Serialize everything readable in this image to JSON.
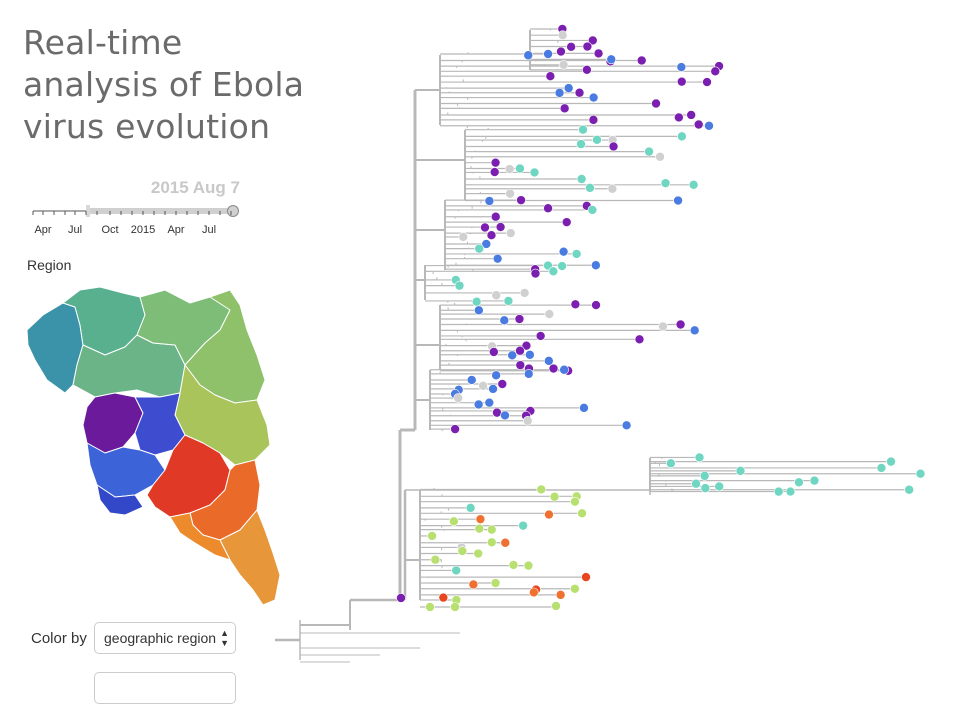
{
  "title": "Real-time analysis of Ebola virus evolution",
  "timeline": {
    "current_date": "2015 Aug 7",
    "tick_labels": [
      "Apr",
      "Jul",
      "Oct",
      "2015",
      "Apr",
      "Jul"
    ],
    "selected_fraction": 0.72
  },
  "map": {
    "label": "Region",
    "colors": {
      "guinea_coast": "#3a93a8",
      "guinea_north": "#58b08f",
      "guinea_central": "#6bb488",
      "guinea_east": "#8fc06a",
      "guinea_southeast": "#a9c45a",
      "sierra_leone_north": "#6a1a9a",
      "sierra_leone_east": "#3e4cd0",
      "sierra_leone_south": "#3d63d8",
      "liberia_north": "#e03a27",
      "liberia_central": "#ea6a2a",
      "liberia_south": "#e8963a"
    }
  },
  "color_by": {
    "label": "Color by",
    "selected": "geographic region"
  },
  "tree": {
    "branch_color": "#b8b8b8",
    "tip_colors": {
      "purple": "#7b1fb0",
      "blue": "#4a7be0",
      "teal": "#6fd6c2",
      "lime": "#b8e070",
      "red": "#e8461e",
      "orange": "#f07030",
      "gray": "#d0d0d0"
    }
  }
}
